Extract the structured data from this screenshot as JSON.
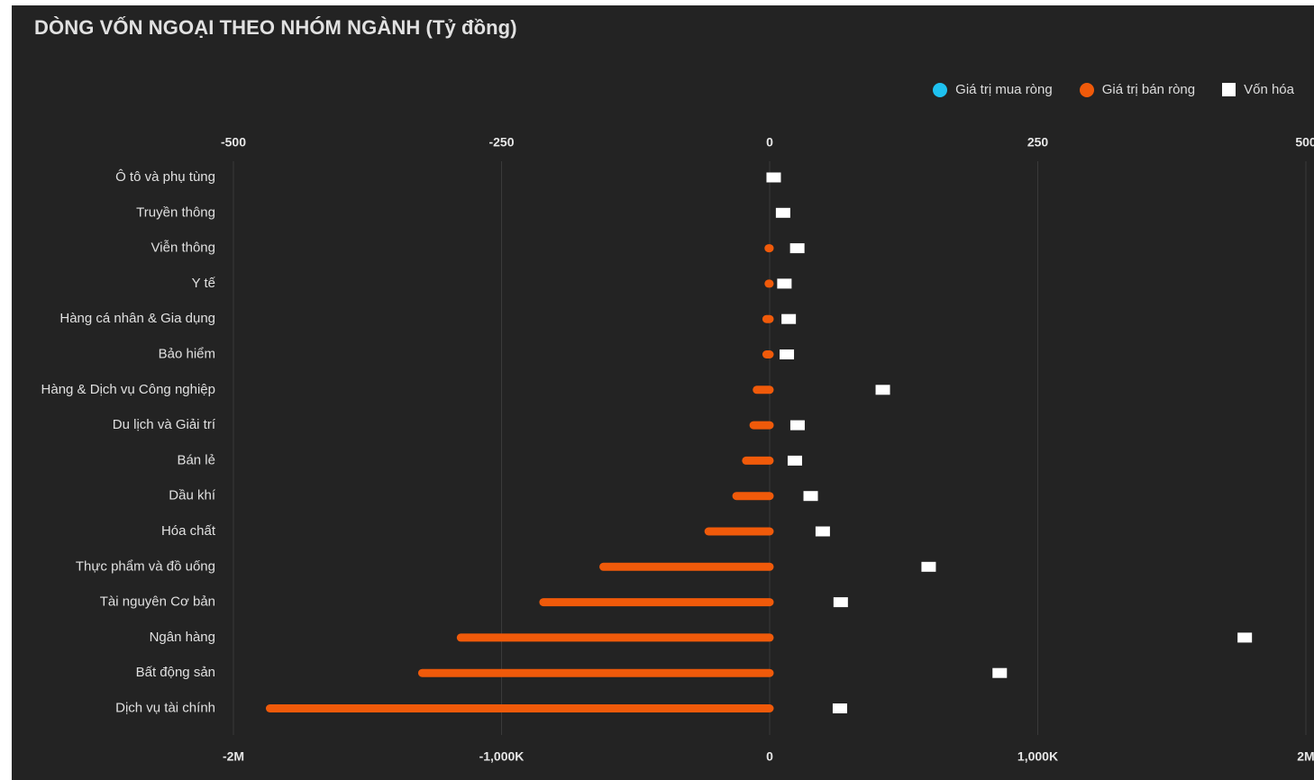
{
  "chart_data": {
    "type": "bar",
    "title": "DÒNG VỐN NGOẠI THEO NHÓM NGÀNH (Tỷ đồng)",
    "categories": [
      "Ô tô và phụ tùng",
      "Truyền thông",
      "Viễn thông",
      "Y tế",
      "Hàng cá nhân & Gia dụng",
      "Bảo hiểm",
      "Hàng & Dịch vụ Công nghiệp",
      "Du lịch và Giải trí",
      "Bán lẻ",
      "Dầu khí",
      "Hóa chất",
      "Thực phẩm và đồ uống",
      "Tài nguyên Cơ bản",
      "Ngân hàng",
      "Bất động sản",
      "Dịch vụ tài chính"
    ],
    "series": [
      {
        "name": "Giá trị mua ròng",
        "color": "#1ec1f0",
        "axis": "top",
        "values": [
          0,
          0,
          0,
          0,
          0,
          0,
          0,
          0,
          0,
          0,
          0,
          0,
          0,
          0,
          0,
          0
        ]
      },
      {
        "name": "Giá trị bán ròng",
        "color": "#f05a0a",
        "axis": "top",
        "values": [
          0,
          0,
          -1,
          -1,
          -3,
          -3,
          -12,
          -15,
          -22,
          -31,
          -57,
          -155,
          -211,
          -288,
          -324,
          -466
        ]
      },
      {
        "name": "Vốn hóa",
        "color": "#ffffff",
        "axis": "bottom",
        "values": [
          15000,
          50000,
          103000,
          55000,
          71000,
          64000,
          422000,
          104000,
          94000,
          153000,
          198000,
          593000,
          265000,
          1772000,
          858000,
          262000
        ]
      }
    ],
    "x_top": {
      "ticks": [
        -500,
        -250,
        0,
        250,
        500
      ],
      "tick_labels": [
        "-500",
        "-250",
        "0",
        "250",
        "500"
      ],
      "range": [
        -500,
        500
      ]
    },
    "x_bottom": {
      "ticks": [
        -2000000,
        -1000000,
        0,
        1000000,
        2000000
      ],
      "tick_labels": [
        "-2M",
        "-1,000K",
        "0",
        "1,000K",
        "2M"
      ],
      "range": [
        -2000000,
        2000000
      ]
    },
    "grid": true,
    "legend_position": "top-right"
  }
}
